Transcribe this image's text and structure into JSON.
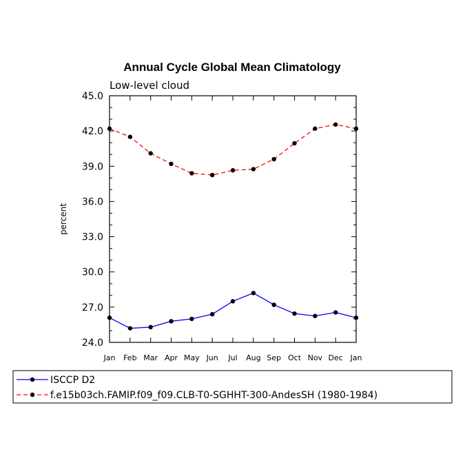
{
  "chart_data": {
    "type": "line",
    "title": "Annual Cycle Global Mean Climatology",
    "subtitle": "Low-level cloud",
    "xlabel": "",
    "ylabel": "percent",
    "ylim": [
      24.0,
      45.0
    ],
    "yticks": [
      "24.0",
      "27.0",
      "30.0",
      "33.0",
      "36.0",
      "39.0",
      "42.0",
      "45.0"
    ],
    "categories": [
      "Jan",
      "Feb",
      "Mar",
      "Apr",
      "May",
      "Jun",
      "Jul",
      "Aug",
      "Sep",
      "Oct",
      "Nov",
      "Dec",
      "Jan"
    ],
    "grid": false,
    "legend_position": "bottom",
    "series": [
      {
        "name": "ISCCP D2",
        "color": "#0000ff",
        "line_style": "solid",
        "marker": "dot",
        "values": [
          26.1,
          25.2,
          25.3,
          25.8,
          26.0,
          26.4,
          27.5,
          28.2,
          27.2,
          26.45,
          26.25,
          26.55,
          26.1
        ]
      },
      {
        "name": "f.e15b03ch.FAMIP.f09_f09.CLB-T0-SGHHT-300-AndesSH (1980-1984)",
        "color": "#ff0000",
        "line_style": "dashed",
        "marker": "dot",
        "values": [
          42.2,
          41.5,
          40.1,
          39.2,
          38.4,
          38.25,
          38.65,
          38.75,
          39.6,
          40.95,
          42.2,
          42.55,
          42.2
        ]
      }
    ]
  }
}
